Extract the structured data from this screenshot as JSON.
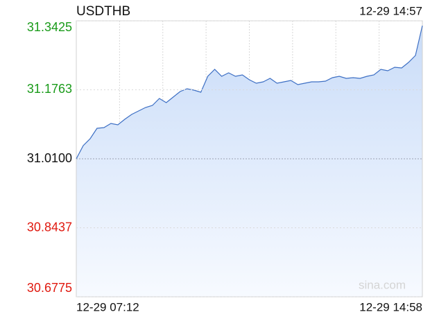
{
  "chart_data": {
    "type": "area",
    "title": "USDTHB",
    "timestamp": "12-29 14:57",
    "watermark": "sina.com",
    "x_labels": [
      "12-29 07:12",
      "12-29 14:58"
    ],
    "values": [
      31.01,
      31.0417,
      31.0584,
      31.0835,
      31.0852,
      31.0952,
      31.0919,
      31.1052,
      31.1169,
      31.1253,
      31.1336,
      31.1387,
      31.1554,
      31.1453,
      31.1587,
      31.1721,
      31.1788,
      31.1754,
      31.1704,
      31.2088,
      31.2255,
      31.2088,
      31.2172,
      31.2088,
      31.2122,
      31.2005,
      31.1921,
      31.1955,
      31.2038,
      31.1921,
      31.1955,
      31.1988,
      31.1888,
      31.1921,
      31.1955,
      31.1955,
      31.1971,
      31.2055,
      31.2088,
      31.2038,
      31.2055,
      31.2038,
      31.2088,
      31.2122,
      31.2255,
      31.2222,
      31.2305,
      31.2289,
      31.2422,
      31.259,
      31.3308
    ],
    "color": "#3d6fc4",
    "ylim": [
      30.6775,
      31.3425
    ],
    "yticks": [
      31.3425,
      31.1763,
      {
        "value": 31.01,
        "label": "31.0100"
      },
      30.8437,
      30.6775
    ],
    "ytick_colors": [
      "#1a9b1a",
      "#1a9b1a",
      "#111111",
      "#e0190f",
      "#e0190f"
    ],
    "xgrid_divisions": 8,
    "grid": true
  }
}
